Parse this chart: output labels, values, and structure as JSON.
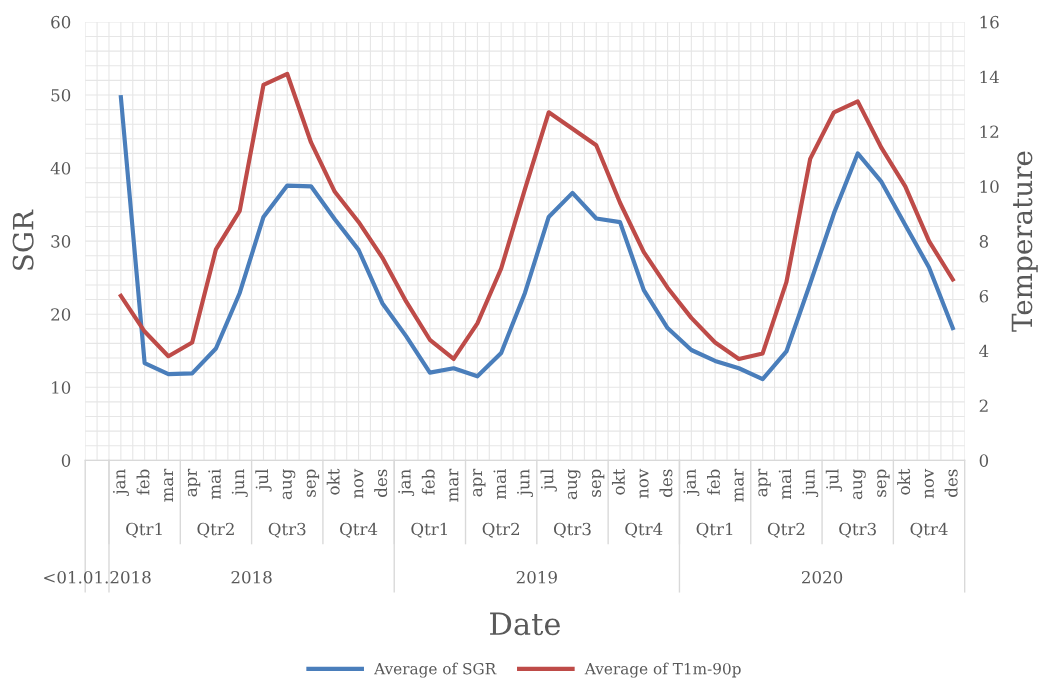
{
  "chart_data": {
    "type": "line",
    "xlabel": "Date",
    "ylabel": "SGR",
    "y2label": "Temperature",
    "categories": [
      null,
      "jan",
      "feb",
      "mar",
      "apr",
      "mai",
      "jun",
      "jul",
      "aug",
      "sep",
      "okt",
      "nov",
      "des",
      "jan",
      "feb",
      "mar",
      "apr",
      "mai",
      "jun",
      "jul",
      "aug",
      "sep",
      "okt",
      "nov",
      "des",
      "jan",
      "feb",
      "mar",
      "apr",
      "mai",
      "jun",
      "jul",
      "aug",
      "sep",
      "okt",
      "nov",
      "des"
    ],
    "annotations": [
      "<01.01.2018",
      "2018",
      "2019",
      "2020",
      "Qtr1",
      "Qtr2",
      "Qtr3",
      "Qtr4",
      "Qtr1",
      "Qtr2",
      "Qtr3",
      "Qtr4",
      "Qtr1",
      "Qtr2",
      "Qtr3",
      "Qtr4"
    ],
    "series": [
      {
        "name": "Average of SGR",
        "color": "#4a7ebb",
        "values": [
          null,
          49.7,
          13.3,
          11.8,
          11.9,
          15.3,
          22.9,
          33.3,
          37.6,
          37.5,
          33.0,
          28.8,
          21.5,
          17.0,
          12.0,
          12.6,
          11.5,
          14.7,
          22.9,
          33.3,
          36.6,
          33.1,
          32.6,
          23.3,
          18.1,
          15.1,
          13.6,
          12.6,
          11.1,
          14.9,
          24.2,
          33.8,
          42.0,
          38.1,
          32.2,
          26.4,
          18.1
        ]
      },
      {
        "name": "Average of T1m-90p",
        "color": "#be4b48",
        "axis": "y2",
        "values": [
          null,
          6.0,
          4.7,
          3.8,
          4.3,
          7.7,
          9.1,
          13.7,
          14.1,
          11.6,
          9.8,
          8.7,
          7.4,
          5.8,
          4.4,
          3.7,
          5.0,
          7.0,
          9.9,
          12.7,
          12.1,
          11.5,
          9.4,
          7.6,
          6.3,
          5.2,
          4.3,
          3.7,
          3.9,
          6.5,
          11.0,
          12.7,
          13.1,
          11.4,
          10.0,
          8.0,
          6.6
        ]
      }
    ],
    "ylim": [
      0,
      60
    ],
    "yticks": [
      0,
      10,
      20,
      30,
      40,
      50,
      60
    ],
    "y2lim": [
      0,
      16
    ],
    "y2ticks": [
      0,
      2,
      4,
      6,
      8,
      10,
      12,
      14,
      16
    ],
    "grid": true,
    "legend": "bottom",
    "marker": "none",
    "line_style": "solid"
  }
}
